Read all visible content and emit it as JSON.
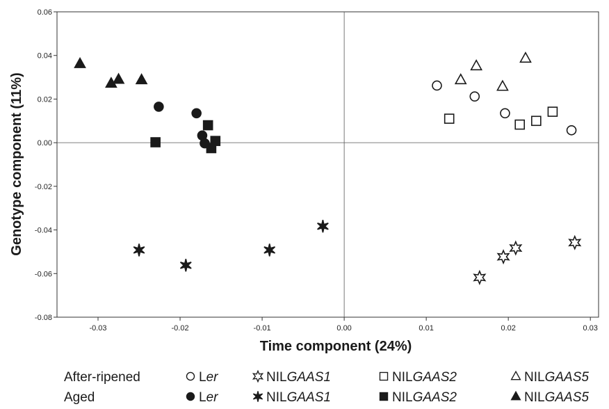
{
  "chart_data": {
    "type": "scatter",
    "xlabel": "Time component (24%)",
    "ylabel": "Genotype component (11%)",
    "xlim": [
      -0.035,
      0.031
    ],
    "ylim": [
      -0.08,
      0.06
    ],
    "x_ticks": [
      -0.03,
      -0.02,
      -0.01,
      0.0,
      0.01,
      0.02,
      0.03
    ],
    "x_tick_labels": [
      "-0.03",
      "-0.02",
      "-0.01",
      "0.00",
      "0.01",
      "0.02",
      "0.03"
    ],
    "y_ticks": [
      0.06,
      0.04,
      0.02,
      0.0,
      -0.02,
      -0.04,
      -0.06,
      -0.08
    ],
    "y_tick_labels": [
      "0.06",
      "0.04",
      "0.02",
      "0.00",
      "-0.02",
      "-0.04",
      "-0.06",
      "-0.08"
    ],
    "zero_lines": true,
    "grid": false,
    "legend_position": "bottom",
    "series": [
      {
        "group": "After-ripened",
        "genotype": "Ler",
        "marker": "circle",
        "filled": false,
        "points": [
          [
            0.0113,
            0.0262
          ],
          [
            0.0159,
            0.0212
          ],
          [
            0.0196,
            0.0135
          ],
          [
            0.0277,
            0.0057
          ]
        ]
      },
      {
        "group": "After-ripened",
        "genotype": "NILGAAS1",
        "marker": "star",
        "filled": false,
        "points": [
          [
            0.0165,
            -0.0618
          ],
          [
            0.0194,
            -0.0523
          ],
          [
            0.0209,
            -0.0483
          ],
          [
            0.0281,
            -0.0458
          ]
        ]
      },
      {
        "group": "After-ripened",
        "genotype": "NILGAAS2",
        "marker": "square",
        "filled": false,
        "points": [
          [
            0.0128,
            0.011
          ],
          [
            0.0214,
            0.0083
          ],
          [
            0.0234,
            0.01
          ],
          [
            0.0254,
            0.0142
          ]
        ]
      },
      {
        "group": "After-ripened",
        "genotype": "NILGAAS5",
        "marker": "triangle",
        "filled": false,
        "points": [
          [
            0.0142,
            0.0288
          ],
          [
            0.0161,
            0.0352
          ],
          [
            0.0193,
            0.0258
          ],
          [
            0.0221,
            0.0387
          ]
        ]
      },
      {
        "group": "Aged",
        "genotype": "Ler",
        "marker": "circle",
        "filled": true,
        "points": [
          [
            -0.0226,
            0.0165
          ],
          [
            -0.018,
            0.0135
          ],
          [
            -0.0173,
            0.0033
          ],
          [
            -0.017,
            -0.0003
          ]
        ]
      },
      {
        "group": "Aged",
        "genotype": "NILGAAS1",
        "marker": "star",
        "filled": true,
        "points": [
          [
            -0.025,
            -0.0492
          ],
          [
            -0.0193,
            -0.0562
          ],
          [
            -0.0091,
            -0.0492
          ],
          [
            -0.0026,
            -0.0383
          ]
        ]
      },
      {
        "group": "Aged",
        "genotype": "NILGAAS2",
        "marker": "square",
        "filled": true,
        "points": [
          [
            -0.023,
            0.0002
          ],
          [
            -0.0166,
            0.008
          ],
          [
            -0.0162,
            -0.0025
          ],
          [
            -0.0157,
            0.0008
          ]
        ]
      },
      {
        "group": "Aged",
        "genotype": "NILGAAS5",
        "marker": "triangle",
        "filled": true,
        "points": [
          [
            -0.0322,
            0.0362
          ],
          [
            -0.0284,
            0.0272
          ],
          [
            -0.0275,
            0.029
          ],
          [
            -0.0247,
            0.0288
          ]
        ]
      }
    ],
    "legend": {
      "rows": [
        {
          "label": "After-ripened",
          "entries": [
            {
              "symbol": "○",
              "prefix": "L",
              "italic": "er"
            },
            {
              "symbol": "✡",
              "prefix": "NIL",
              "italic": "GAAS1"
            },
            {
              "symbol": "□",
              "prefix": "NIL",
              "italic": "GAAS2"
            },
            {
              "symbol": "△",
              "prefix": "NIL",
              "italic": "GAAS5"
            }
          ]
        },
        {
          "label": "Aged",
          "entries": [
            {
              "symbol": "●",
              "prefix": "L",
              "italic": "er"
            },
            {
              "symbol": "✶",
              "prefix": "NIL",
              "italic": "GAAS1"
            },
            {
              "symbol": "■",
              "prefix": "NIL",
              "italic": "GAAS2"
            },
            {
              "symbol": "▲",
              "prefix": "NIL",
              "italic": "GAAS5"
            }
          ]
        }
      ]
    },
    "colors": {
      "marker": "#1a1a1a",
      "axis": "#333333",
      "background": "#ffffff"
    }
  }
}
